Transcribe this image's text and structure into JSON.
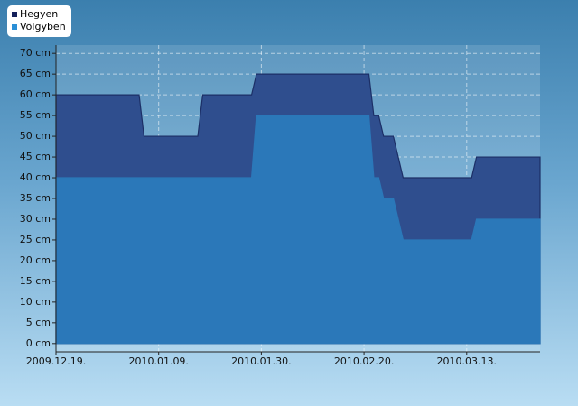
{
  "chart_data": {
    "type": "area",
    "x": [
      "2009-12-19",
      "2010-01-05",
      "2010-01-06",
      "2010-01-17",
      "2010-01-18",
      "2010-01-28",
      "2010-01-29",
      "2010-02-21",
      "2010-02-22",
      "2010-02-23",
      "2010-02-24",
      "2010-02-26",
      "2010-02-28",
      "2010-03-14",
      "2010-03-15",
      "2010-03-28"
    ],
    "series": [
      {
        "name": "Hegyen",
        "color": "#2f4e8e",
        "line_color": "#1c2f66",
        "legend_color": "#14205a",
        "values": [
          60,
          60,
          50,
          50,
          60,
          60,
          65,
          65,
          55,
          55,
          50,
          50,
          40,
          40,
          45,
          45
        ]
      },
      {
        "name": "Völgyben",
        "color": "#2b78b9",
        "line_color": "#2b78b9",
        "legend_color": "#2a8fd6",
        "values": [
          40,
          40,
          40,
          40,
          40,
          40,
          55,
          55,
          40,
          40,
          35,
          35,
          25,
          25,
          30,
          30
        ]
      }
    ],
    "xlim": [
      "2009-12-19",
      "2010-03-28"
    ],
    "xticks": [
      {
        "value": "2009-12-19",
        "label": "2009.12.19."
      },
      {
        "value": "2010-01-09",
        "label": "2010.01.09."
      },
      {
        "value": "2010-01-30",
        "label": "2010.01.30."
      },
      {
        "value": "2010-02-20",
        "label": "2010.02.20."
      },
      {
        "value": "2010-03-13",
        "label": "2010.03.13."
      }
    ],
    "ylim": [
      -2,
      72
    ],
    "yticks": [
      {
        "value": 0,
        "label": "0 cm"
      },
      {
        "value": 5,
        "label": "5 cm"
      },
      {
        "value": 10,
        "label": "10 cm"
      },
      {
        "value": 15,
        "label": "15 cm"
      },
      {
        "value": 20,
        "label": "20 cm"
      },
      {
        "value": 25,
        "label": "25 cm"
      },
      {
        "value": 30,
        "label": "30 cm"
      },
      {
        "value": 35,
        "label": "35 cm"
      },
      {
        "value": 40,
        "label": "40 cm"
      },
      {
        "value": 45,
        "label": "45 cm"
      },
      {
        "value": 50,
        "label": "50 cm"
      },
      {
        "value": 55,
        "label": "55 cm"
      },
      {
        "value": 60,
        "label": "60 cm"
      },
      {
        "value": 65,
        "label": "65 cm"
      },
      {
        "value": 70,
        "label": "70 cm"
      }
    ],
    "grid": true,
    "legend": "top-left"
  }
}
